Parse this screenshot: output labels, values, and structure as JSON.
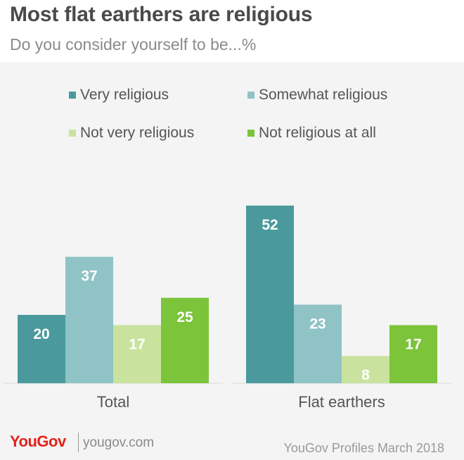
{
  "title": "Most flat earthers are religious",
  "subtitle": "Do you consider yourself to be...%",
  "footer": {
    "brand": "YouGov",
    "site": "yougov.com",
    "source": "YouGov Profiles March 2018"
  },
  "chart_data": {
    "type": "bar",
    "categories": [
      "Total",
      "Flat earthers"
    ],
    "series": [
      {
        "name": "Very religious",
        "values": [
          20,
          52
        ],
        "color": "#4a9a9d"
      },
      {
        "name": "Somewhat religious",
        "values": [
          37,
          23
        ],
        "color": "#8fc3c6"
      },
      {
        "name": "Not very religious",
        "values": [
          17,
          8
        ],
        "color": "#c9e39e"
      },
      {
        "name": "Not religious at all",
        "values": [
          25,
          17
        ],
        "color": "#7cc43a"
      }
    ],
    "ylim": [
      0,
      55
    ],
    "legend": "top",
    "grid": false,
    "data_labels": true
  }
}
